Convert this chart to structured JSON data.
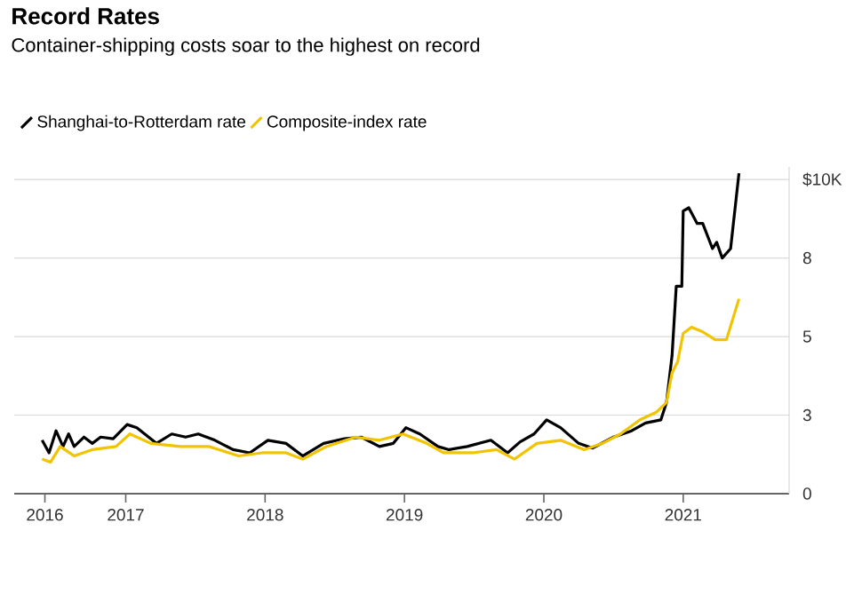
{
  "chart_data": {
    "type": "line",
    "title": "Record Rates",
    "subtitle": "Container-shipping costs soar to the highest on record",
    "series": [
      {
        "name": "Shanghai-to-Rotterdam rate",
        "color": "#000000",
        "x": [
          2016.4,
          2016.45,
          2016.5,
          2016.55,
          2016.59,
          2016.63,
          2016.7,
          2016.76,
          2016.82,
          2016.91,
          2017.01,
          2017.08,
          2017.22,
          2017.33,
          2017.43,
          2017.52,
          2017.64,
          2017.77,
          2017.89,
          2018.02,
          2018.15,
          2018.27,
          2018.42,
          2018.57,
          2018.69,
          2018.82,
          2018.92,
          2019.01,
          2019.11,
          2019.24,
          2019.32,
          2019.45,
          2019.62,
          2019.74,
          2019.83,
          2019.93,
          2020.02,
          2020.12,
          2020.25,
          2020.35,
          2020.5,
          2020.63,
          2020.73,
          2020.84,
          2020.88,
          2020.92,
          2020.95,
          2020.99,
          2021.0,
          2021.04,
          2021.1,
          2021.14,
          2021.21,
          2021.24,
          2021.28,
          2021.34,
          2021.4
        ],
        "values": [
          1.7,
          1.3,
          2.0,
          1.5,
          1.9,
          1.5,
          1.8,
          1.6,
          1.8,
          1.75,
          2.2,
          2.1,
          1.6,
          1.9,
          1.8,
          1.9,
          1.7,
          1.4,
          1.3,
          1.7,
          1.6,
          1.2,
          1.6,
          1.75,
          1.8,
          1.5,
          1.6,
          2.1,
          1.9,
          1.5,
          1.4,
          1.5,
          1.7,
          1.3,
          1.65,
          1.9,
          2.35,
          2.1,
          1.6,
          1.45,
          1.8,
          2.0,
          2.25,
          2.35,
          2.9,
          4.4,
          6.6,
          6.6,
          9.0,
          9.1,
          8.6,
          8.6,
          7.8,
          8.0,
          7.5,
          7.8,
          10.2
        ]
      },
      {
        "name": "Composite-index rate",
        "color": "#f2c400",
        "x": [
          2016.4,
          2016.46,
          2016.53,
          2016.63,
          2016.76,
          2016.93,
          2017.03,
          2017.18,
          2017.39,
          2017.6,
          2017.81,
          2017.98,
          2018.15,
          2018.27,
          2018.44,
          2018.65,
          2018.82,
          2018.99,
          2019.16,
          2019.28,
          2019.49,
          2019.66,
          2019.79,
          2019.95,
          2020.12,
          2020.29,
          2020.42,
          2020.55,
          2020.69,
          2020.81,
          2020.88,
          2020.92,
          2020.96,
          2021.0,
          2021.06,
          2021.14,
          2021.23,
          2021.31,
          2021.4
        ],
        "values": [
          1.1,
          1.0,
          1.5,
          1.2,
          1.4,
          1.5,
          1.9,
          1.6,
          1.5,
          1.5,
          1.2,
          1.3,
          1.3,
          1.1,
          1.5,
          1.8,
          1.7,
          1.9,
          1.6,
          1.3,
          1.3,
          1.4,
          1.1,
          1.6,
          1.7,
          1.4,
          1.6,
          1.9,
          2.35,
          2.6,
          2.9,
          3.85,
          4.2,
          5.1,
          5.3,
          5.15,
          4.9,
          4.9,
          6.2
        ]
      }
    ],
    "xlim": [
      2016.2,
      2021.76
    ],
    "xticks": [
      {
        "value": 2016.42,
        "label": "2016"
      },
      2017,
      2018,
      2019,
      2020,
      2021
    ],
    "ylim": [
      0,
      10.4
    ],
    "yticks": [
      0,
      {
        "value": 2.5,
        "label": "3"
      },
      5,
      {
        "value": 7.5,
        "label": "8"
      },
      {
        "value": 10,
        "label": "$10K"
      }
    ],
    "grid": "y",
    "legend": "top left",
    "line_style": "solid"
  }
}
